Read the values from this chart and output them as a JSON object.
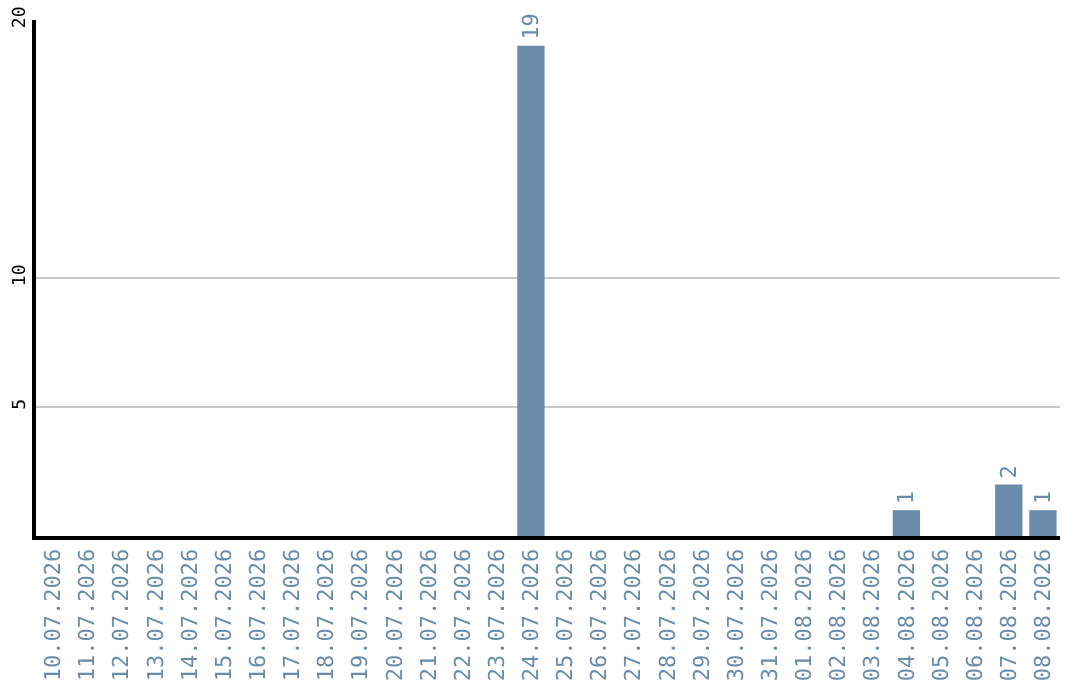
{
  "chart_data": {
    "type": "bar",
    "categories": [
      "10.07.2026",
      "11.07.2026",
      "12.07.2026",
      "13.07.2026",
      "14.07.2026",
      "15.07.2026",
      "16.07.2026",
      "17.07.2026",
      "18.07.2026",
      "19.07.2026",
      "20.07.2026",
      "21.07.2026",
      "22.07.2026",
      "23.07.2026",
      "24.07.2026",
      "25.07.2026",
      "26.07.2026",
      "27.07.2026",
      "28.07.2026",
      "29.07.2026",
      "30.07.2026",
      "31.07.2026",
      "01.08.2026",
      "02.08.2026",
      "03.08.2026",
      "04.08.2026",
      "05.08.2026",
      "06.08.2026",
      "07.08.2026",
      "08.08.2026"
    ],
    "values": [
      0,
      0,
      0,
      0,
      0,
      0,
      0,
      0,
      0,
      0,
      0,
      0,
      0,
      0,
      19,
      0,
      0,
      0,
      0,
      0,
      0,
      0,
      0,
      0,
      0,
      1,
      0,
      0,
      2,
      1
    ],
    "value_labels": [
      null,
      null,
      null,
      null,
      null,
      null,
      null,
      null,
      null,
      null,
      null,
      null,
      null,
      null,
      "19",
      null,
      null,
      null,
      null,
      null,
      null,
      null,
      null,
      null,
      null,
      "1",
      null,
      null,
      "2",
      "1"
    ],
    "color": "#6a8cab",
    "ylim": [
      0,
      20
    ],
    "yticks": [
      5,
      10,
      20
    ],
    "grid": "y"
  }
}
